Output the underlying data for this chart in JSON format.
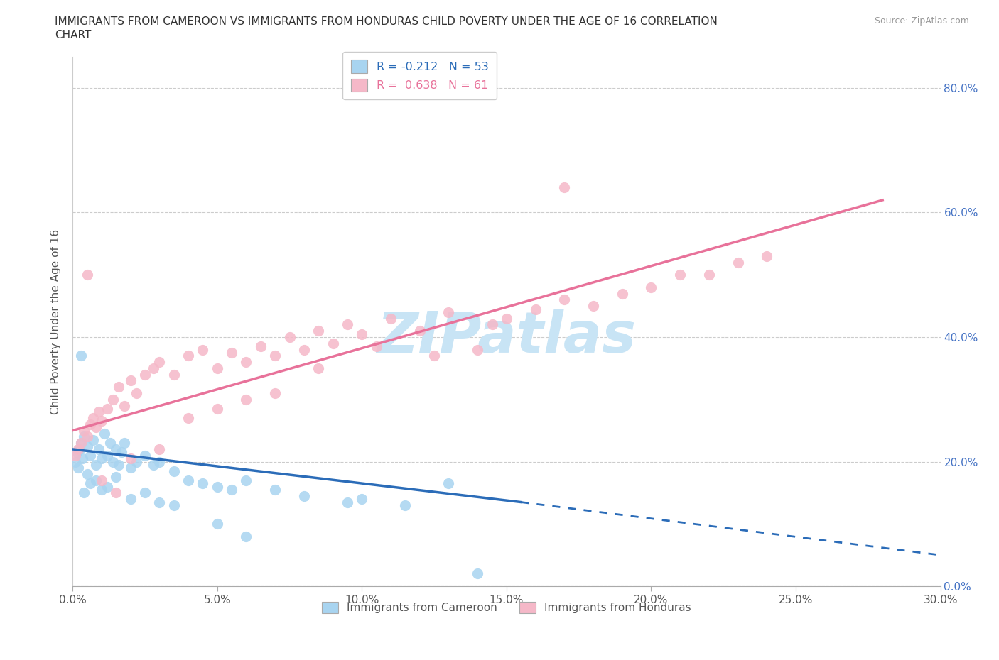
{
  "title_line1": "IMMIGRANTS FROM CAMEROON VS IMMIGRANTS FROM HONDURAS CHILD POVERTY UNDER THE AGE OF 16 CORRELATION",
  "title_line2": "CHART",
  "source_text": "Source: ZipAtlas.com",
  "ylabel": "Child Poverty Under the Age of 16",
  "xtick_vals": [
    0.0,
    5.0,
    10.0,
    15.0,
    20.0,
    25.0,
    30.0
  ],
  "ytick_vals": [
    0.0,
    20.0,
    40.0,
    60.0,
    80.0
  ],
  "blue_color": "#A8D4F0",
  "pink_color": "#F5B8C8",
  "blue_line_color": "#2B6CB8",
  "pink_line_color": "#E8729A",
  "blue_label": "Immigrants from Cameroon",
  "pink_label": "Immigrants from Honduras",
  "R_blue": -0.212,
  "N_blue": 53,
  "R_pink": 0.638,
  "N_pink": 61,
  "watermark": "ZIPatlas",
  "watermark_color": "#C8E4F5",
  "xlim": [
    0,
    30
  ],
  "ylim": [
    0,
    85
  ],
  "blue_line_x0": 0.0,
  "blue_line_y0": 22.0,
  "blue_line_x1": 15.5,
  "blue_line_y1": 13.5,
  "blue_dash_x0": 15.5,
  "blue_dash_y0": 13.5,
  "blue_dash_x1": 30.0,
  "blue_dash_y1": 5.0,
  "pink_line_x0": 0.0,
  "pink_line_y0": 25.0,
  "pink_line_x1": 28.0,
  "pink_line_y1": 62.0,
  "blue_pts_x": [
    0.1,
    0.15,
    0.2,
    0.25,
    0.3,
    0.35,
    0.4,
    0.5,
    0.5,
    0.6,
    0.7,
    0.8,
    0.9,
    1.0,
    1.1,
    1.2,
    1.3,
    1.4,
    1.5,
    1.6,
    1.7,
    1.8,
    2.0,
    2.2,
    2.5,
    2.8,
    3.0,
    3.5,
    4.0,
    4.5,
    5.0,
    5.5,
    6.0,
    7.0,
    8.0,
    9.5,
    10.0,
    11.5,
    13.0,
    14.0,
    0.3,
    0.4,
    0.6,
    0.8,
    1.0,
    1.2,
    1.5,
    2.0,
    2.5,
    3.0,
    3.5,
    5.0,
    6.0
  ],
  "blue_pts_y": [
    20.0,
    21.5,
    19.0,
    22.0,
    23.0,
    20.5,
    24.0,
    22.5,
    18.0,
    21.0,
    23.5,
    19.5,
    22.0,
    20.5,
    24.5,
    21.0,
    23.0,
    20.0,
    22.0,
    19.5,
    21.5,
    23.0,
    19.0,
    20.0,
    21.0,
    19.5,
    20.0,
    18.5,
    17.0,
    16.5,
    16.0,
    15.5,
    17.0,
    15.5,
    14.5,
    13.5,
    14.0,
    13.0,
    16.5,
    2.0,
    37.0,
    15.0,
    16.5,
    17.0,
    15.5,
    16.0,
    17.5,
    14.0,
    15.0,
    13.5,
    13.0,
    10.0,
    8.0
  ],
  "pink_pts_x": [
    0.1,
    0.2,
    0.3,
    0.4,
    0.5,
    0.6,
    0.7,
    0.8,
    0.9,
    1.0,
    1.2,
    1.4,
    1.6,
    1.8,
    2.0,
    2.2,
    2.5,
    2.8,
    3.0,
    3.5,
    4.0,
    4.5,
    5.0,
    5.5,
    6.0,
    6.5,
    7.0,
    7.5,
    8.0,
    8.5,
    9.0,
    9.5,
    10.0,
    11.0,
    12.0,
    13.0,
    14.0,
    15.0,
    16.0,
    17.0,
    18.0,
    19.0,
    20.0,
    21.0,
    22.0,
    23.0,
    24.0,
    0.5,
    1.0,
    1.5,
    2.0,
    3.0,
    4.0,
    5.0,
    6.0,
    7.0,
    8.5,
    10.5,
    12.5,
    14.5,
    17.0
  ],
  "pink_pts_y": [
    21.0,
    22.0,
    23.0,
    25.0,
    24.0,
    26.0,
    27.0,
    25.5,
    28.0,
    26.5,
    28.5,
    30.0,
    32.0,
    29.0,
    33.0,
    31.0,
    34.0,
    35.0,
    36.0,
    34.0,
    37.0,
    38.0,
    35.0,
    37.5,
    36.0,
    38.5,
    37.0,
    40.0,
    38.0,
    41.0,
    39.0,
    42.0,
    40.5,
    43.0,
    41.0,
    44.0,
    38.0,
    43.0,
    44.5,
    46.0,
    45.0,
    47.0,
    48.0,
    50.0,
    50.0,
    52.0,
    53.0,
    50.0,
    17.0,
    15.0,
    20.5,
    22.0,
    27.0,
    28.5,
    30.0,
    31.0,
    35.0,
    38.5,
    37.0,
    42.0,
    64.0
  ]
}
